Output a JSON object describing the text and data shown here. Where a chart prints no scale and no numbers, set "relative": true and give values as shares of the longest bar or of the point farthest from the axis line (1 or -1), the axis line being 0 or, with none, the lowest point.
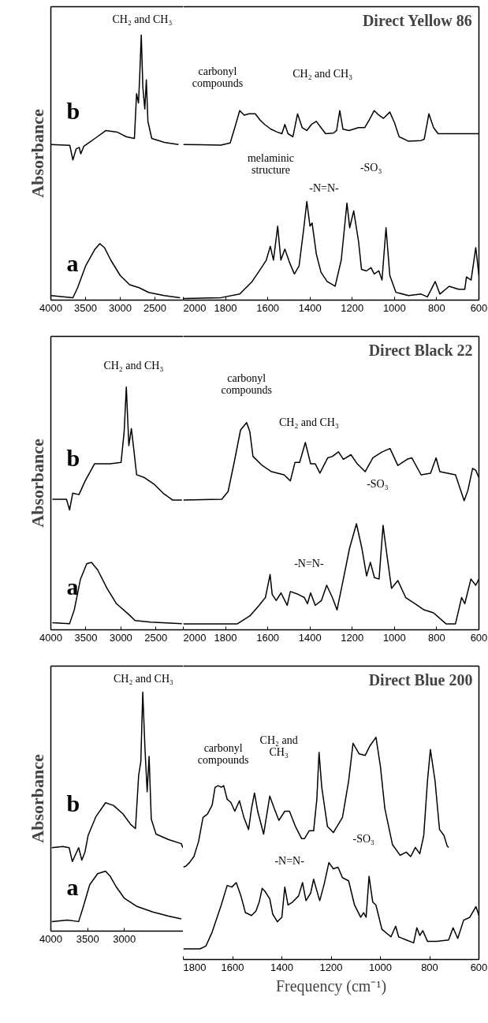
{
  "chart_data": [
    {
      "type": "line",
      "relative": true,
      "ylabel": "Absorbance",
      "xlim": [
        4000,
        2090
      ],
      "xticks": [
        4000,
        3500,
        3000,
        2500
      ],
      "series": [
        {
          "name": "b",
          "color": "#000000",
          "x": [
            4000,
            3727,
            3682,
            3636,
            3591,
            3568,
            3523,
            3455,
            3364,
            3205,
            3045,
            2909,
            2795,
            2764,
            2736,
            2718,
            2696,
            2673,
            2645,
            2623,
            2600,
            2545,
            2364,
            2159
          ],
          "values": [
            0.587,
            0.584,
            0.529,
            0.57,
            0.576,
            0.552,
            0.581,
            0.593,
            0.61,
            0.64,
            0.634,
            0.616,
            0.61,
            0.779,
            0.744,
            0.849,
            1.0,
            0.802,
            0.721,
            0.831,
            0.674,
            0.61,
            0.595,
            0.587
          ]
        },
        {
          "name": "a",
          "color": "#000000",
          "x": [
            4000,
            3682,
            3614,
            3500,
            3364,
            3295,
            3227,
            3136,
            3000,
            2864,
            2727,
            2591,
            2364,
            2136
          ],
          "values": [
            0.017,
            0.009,
            0.047,
            0.128,
            0.192,
            0.213,
            0.198,
            0.151,
            0.093,
            0.058,
            0.047,
            0.029,
            0.017,
            0.009
          ]
        }
      ],
      "annotations": [
        "CH₂ and CH₃"
      ]
    },
    {
      "type": "line",
      "relative": true,
      "title": "Direct Yellow 86",
      "xlim": [
        2000,
        600
      ],
      "xticks": [
        2000,
        1800,
        1600,
        1400,
        1200,
        1000,
        800,
        600
      ],
      "series": [
        {
          "color": "#000000",
          "x": [
            2000,
            1822,
            1778,
            1756,
            1733,
            1711,
            1689,
            1659,
            1637,
            1615,
            1585,
            1556,
            1533,
            1519,
            1504,
            1481,
            1459,
            1437,
            1415,
            1393,
            1370,
            1348,
            1326,
            1289,
            1274,
            1259,
            1244,
            1215,
            1170,
            1141,
            1119,
            1096,
            1074,
            1052,
            1022,
            1000,
            978,
            933,
            874,
            859,
            837,
            815,
            793,
            770,
            600
          ],
          "values": [
            0.821,
            0.818,
            0.829,
            0.91,
            1.0,
            0.976,
            0.983,
            0.983,
            0.951,
            0.927,
            0.902,
            0.887,
            0.878,
            0.927,
            0.878,
            0.862,
            0.983,
            0.91,
            0.895,
            0.927,
            0.943,
            0.91,
            0.878,
            0.881,
            0.895,
            1.0,
            0.902,
            0.895,
            0.91,
            0.91,
            0.951,
            1.0,
            0.976,
            0.959,
            0.992,
            0.936,
            0.862,
            0.838,
            0.842,
            0.849,
            0.983,
            0.91,
            0.878,
            0.878,
            0.878
          ]
        },
        {
          "color": "#000000",
          "x": [
            2000,
            1822,
            1733,
            1674,
            1630,
            1607,
            1588,
            1573,
            1553,
            1538,
            1519,
            1496,
            1474,
            1452,
            1430,
            1415,
            1400,
            1390,
            1370,
            1348,
            1319,
            1281,
            1252,
            1225,
            1212,
            1193,
            1170,
            1156,
            1133,
            1111,
            1096,
            1074,
            1059,
            1040,
            1022,
            993,
            933,
            874,
            844,
            807,
            785,
            741,
            696,
            667,
            659,
            637,
            615,
            600
          ],
          "values": [
            0.008,
            0.013,
            0.032,
            0.098,
            0.171,
            0.211,
            0.284,
            0.211,
            0.39,
            0.211,
            0.269,
            0.196,
            0.138,
            0.179,
            0.373,
            0.52,
            0.39,
            0.407,
            0.243,
            0.147,
            0.098,
            0.073,
            0.211,
            0.512,
            0.382,
            0.471,
            0.309,
            0.162,
            0.154,
            0.171,
            0.138,
            0.154,
            0.106,
            0.382,
            0.13,
            0.041,
            0.024,
            0.032,
            0.017,
            0.098,
            0.032,
            0.073,
            0.057,
            0.057,
            0.122,
            0.106,
            0.277,
            0.13
          ]
        }
      ],
      "annotations": [
        "carbonyl\ncompounds",
        "CH₂ and CH₃",
        "melaminic\nstructure",
        "-N=N-",
        "-SO₃"
      ]
    },
    {
      "type": "line",
      "relative": true,
      "ylabel": "Absorbance",
      "xlim": [
        4000,
        2110
      ],
      "xticks": [
        4000,
        3500,
        3000,
        2500
      ],
      "series": [
        {
          "name": "b",
          "color": "#000000",
          "x": [
            3978,
            3777,
            3733,
            3688,
            3599,
            3510,
            3377,
            3154,
            2998,
            2954,
            2923,
            2887,
            2851,
            2820,
            2776,
            2664,
            2531,
            2397,
            2264,
            2130
          ],
          "values": [
            0.538,
            0.538,
            0.494,
            0.563,
            0.557,
            0.614,
            0.684,
            0.684,
            0.69,
            0.816,
            1.0,
            0.759,
            0.829,
            0.753,
            0.639,
            0.627,
            0.601,
            0.563,
            0.535,
            0.535
          ]
        },
        {
          "name": "a",
          "color": "#000000",
          "x": [
            3978,
            3733,
            3666,
            3577,
            3488,
            3421,
            3332,
            3199,
            3065,
            2887,
            2798,
            2575,
            2130
          ],
          "values": [
            0.029,
            0.025,
            0.082,
            0.209,
            0.272,
            0.278,
            0.247,
            0.171,
            0.108,
            0.063,
            0.038,
            0.032,
            0.025
          ]
        }
      ],
      "annotations": [
        "CH₂ and CH₃"
      ]
    },
    {
      "type": "line",
      "relative": true,
      "title": "Direct Black 22",
      "xlim": [
        2000,
        600
      ],
      "xticks": [
        2000,
        1800,
        1600,
        1400,
        1200,
        1000,
        800,
        600
      ],
      "series": [
        {
          "color": "#000000",
          "x": [
            2000,
            1818,
            1788,
            1759,
            1729,
            1700,
            1685,
            1670,
            1626,
            1582,
            1523,
            1493,
            1471,
            1449,
            1422,
            1397,
            1375,
            1353,
            1316,
            1294,
            1265,
            1242,
            1206,
            1176,
            1139,
            1102,
            1058,
            1021,
            984,
            940,
            918,
            874,
            829,
            803,
            785,
            711,
            670,
            652,
            630,
            615,
            600
          ],
          "values": [
            0.626,
            0.63,
            0.667,
            0.808,
            0.964,
            1.0,
            0.956,
            0.837,
            0.793,
            0.763,
            0.748,
            0.719,
            0.808,
            0.808,
            0.904,
            0.801,
            0.801,
            0.756,
            0.83,
            0.837,
            0.859,
            0.823,
            0.845,
            0.801,
            0.763,
            0.83,
            0.859,
            0.875,
            0.793,
            0.823,
            0.83,
            0.748,
            0.756,
            0.83,
            0.763,
            0.748,
            0.623,
            0.674,
            0.779,
            0.77,
            0.734
          ]
        },
        {
          "color": "#000000",
          "x": [
            2000,
            1744,
            1685,
            1641,
            1611,
            1589,
            1579,
            1560,
            1537,
            1508,
            1493,
            1456,
            1427,
            1412,
            1397,
            1375,
            1346,
            1321,
            1294,
            1272,
            1242,
            1213,
            1180,
            1154,
            1132,
            1114,
            1095,
            1073,
            1054,
            1036,
            1014,
            984,
            947,
            903,
            859,
            815,
            756,
            711,
            682,
            667,
            638,
            615,
            600
          ],
          "values": [
            0.029,
            0.029,
            0.067,
            0.118,
            0.156,
            0.267,
            0.171,
            0.141,
            0.178,
            0.118,
            0.185,
            0.171,
            0.156,
            0.126,
            0.178,
            0.118,
            0.141,
            0.215,
            0.156,
            0.096,
            0.245,
            0.392,
            0.512,
            0.392,
            0.26,
            0.326,
            0.252,
            0.245,
            0.504,
            0.363,
            0.2,
            0.238,
            0.156,
            0.126,
            0.096,
            0.082,
            0.029,
            0.029,
            0.156,
            0.126,
            0.245,
            0.215,
            0.245
          ]
        }
      ],
      "annotations": [
        "carbonyl\ncompounds",
        "CH₂ and CH₃",
        "-SO₃",
        "-N=N-"
      ]
    },
    {
      "type": "line",
      "relative": true,
      "ylabel": "Absorbance",
      "xlim": [
        4000,
        2200
      ],
      "xticks": [
        4000,
        3500,
        3000
      ],
      "series": [
        {
          "name": "b",
          "color": "#000000",
          "x": [
            3987,
            3837,
            3751,
            3708,
            3665,
            3622,
            3579,
            3536,
            3494,
            3386,
            3257,
            3150,
            3021,
            2914,
            2850,
            2807,
            2777,
            2751,
            2721,
            2691,
            2665,
            2635,
            2571,
            2399,
            2227,
            2206
          ],
          "values": [
            0.349,
            0.354,
            0.349,
            0.291,
            0.32,
            0.349,
            0.297,
            0.331,
            0.4,
            0.48,
            0.537,
            0.526,
            0.491,
            0.446,
            0.429,
            0.651,
            0.709,
            1.0,
            0.766,
            0.583,
            0.731,
            0.469,
            0.406,
            0.383,
            0.366,
            0.349
          ]
        },
        {
          "name": "a",
          "color": "#000000",
          "x": [
            3987,
            3773,
            3622,
            3558,
            3472,
            3365,
            3257,
            3193,
            3107,
            3000,
            2828,
            2614,
            2399,
            2227
          ],
          "values": [
            0.04,
            0.046,
            0.04,
            0.103,
            0.194,
            0.24,
            0.251,
            0.229,
            0.183,
            0.137,
            0.103,
            0.08,
            0.063,
            0.051
          ]
        }
      ],
      "annotations": [
        "CH₂ and CH₃"
      ]
    },
    {
      "type": "line",
      "relative": true,
      "title": "Direct Blue 200",
      "xlabel": "Frequency (cm⁻¹)",
      "xlim": [
        1800,
        600
      ],
      "xticks": [
        1800,
        1600,
        1400,
        1200,
        1000,
        800,
        600
      ],
      "series": [
        {
          "color": "#000000",
          "x": [
            1800,
            1788,
            1775,
            1757,
            1738,
            1720,
            1702,
            1683,
            1671,
            1658,
            1646,
            1636,
            1622,
            1607,
            1591,
            1572,
            1554,
            1535,
            1523,
            1511,
            1498,
            1474,
            1449,
            1431,
            1412,
            1388,
            1369,
            1345,
            1320,
            1308,
            1289,
            1271,
            1258,
            1249,
            1238,
            1215,
            1191,
            1154,
            1129,
            1111,
            1086,
            1062,
            1043,
            1018,
            1000,
            982,
            951,
            920,
            895,
            877,
            858,
            840,
            824,
            809,
            797,
            778,
            760,
            742,
            729,
            723
          ],
          "values": [
            0.415,
            0.421,
            0.436,
            0.463,
            0.531,
            0.639,
            0.654,
            0.694,
            0.775,
            0.782,
            0.775,
            0.782,
            0.721,
            0.707,
            0.667,
            0.714,
            0.639,
            0.585,
            0.68,
            0.749,
            0.667,
            0.564,
            0.735,
            0.68,
            0.626,
            0.667,
            0.667,
            0.599,
            0.544,
            0.544,
            0.579,
            0.579,
            0.721,
            0.932,
            0.775,
            0.599,
            0.571,
            0.639,
            0.802,
            0.973,
            0.925,
            0.918,
            0.96,
            1.0,
            0.87,
            0.68,
            0.517,
            0.469,
            0.483,
            0.463,
            0.504,
            0.476,
            0.558,
            0.802,
            0.945,
            0.802,
            0.585,
            0.558,
            0.511,
            0.504
          ]
        },
        {
          "color": "#000000",
          "x": [
            1800,
            1732,
            1708,
            1683,
            1646,
            1622,
            1603,
            1585,
            1566,
            1548,
            1523,
            1505,
            1492,
            1480,
            1468,
            1449,
            1437,
            1418,
            1400,
            1388,
            1375,
            1357,
            1332,
            1316,
            1302,
            1283,
            1271,
            1252,
            1246,
            1228,
            1209,
            1191,
            1172,
            1154,
            1129,
            1105,
            1080,
            1068,
            1058,
            1046,
            1031,
            1018,
            994,
            957,
            938,
            926,
            895,
            865,
            852,
            840,
            828,
            809,
            772,
            723,
            705,
            686,
            662,
            637,
            612,
            600
          ],
          "values": [
            0.048,
            0.048,
            0.061,
            0.123,
            0.245,
            0.333,
            0.326,
            0.346,
            0.286,
            0.211,
            0.198,
            0.218,
            0.258,
            0.32,
            0.306,
            0.273,
            0.204,
            0.17,
            0.19,
            0.326,
            0.245,
            0.258,
            0.286,
            0.346,
            0.265,
            0.299,
            0.361,
            0.286,
            0.265,
            0.34,
            0.436,
            0.408,
            0.415,
            0.368,
            0.354,
            0.245,
            0.19,
            0.211,
            0.19,
            0.374,
            0.258,
            0.245,
            0.136,
            0.102,
            0.15,
            0.102,
            0.088,
            0.075,
            0.143,
            0.108,
            0.13,
            0.082,
            0.082,
            0.088,
            0.143,
            0.095,
            0.177,
            0.19,
            0.238,
            0.198
          ]
        }
      ],
      "annotations": [
        "carbonyl\ncompounds",
        "CH₂ and\nCH₃",
        "-N=N-",
        "-SO₃"
      ]
    }
  ]
}
